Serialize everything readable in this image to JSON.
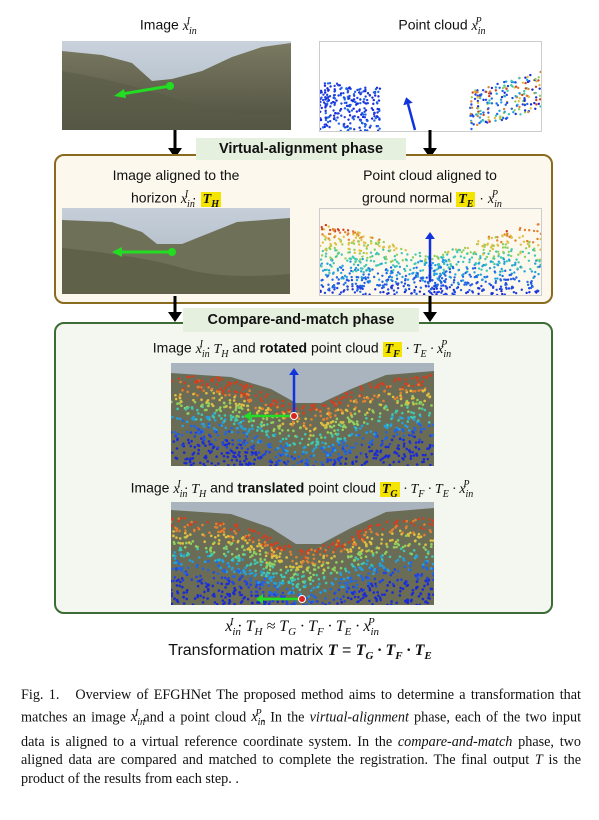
{
  "top": {
    "image_label": "Image ",
    "pc_label": "Point cloud "
  },
  "virtual_phase": {
    "title": "Virtual-alignment phase",
    "left_label_1": "Image aligned to the",
    "left_label_2": "horizon ",
    "right_label_1": "Point cloud aligned to",
    "right_label_2": "ground normal "
  },
  "compare_phase": {
    "title": "Compare-and-match phase",
    "rot_pre": "Image ",
    "rot_mid": " and ",
    "rot_bold": "rotated",
    "rot_post": " point cloud ",
    "trans_pre": "Image ",
    "trans_mid": " and ",
    "trans_bold": "translated",
    "trans_post": " point cloud "
  },
  "equations": {
    "line2_pre": "Transformation matrix "
  },
  "caption": {
    "fig": "Fig. 1.",
    "text1": "Overview of EFGHNet The proposed method aims to determine a transformation that matches an image ",
    "text2": " and a point cloud ",
    "text3": ". In the ",
    "virtual": "virtual-alignment",
    "text4": " phase, each of the two input data is aligned to a virtual reference coordinate system. In the ",
    "compare": "compare-and-match",
    "text5": " phase, two aligned data are compared and matched to complete the registration. The final output ",
    "text6": " is the product of the results from each step. ."
  },
  "colors": {
    "virtual_border": "#8a6a1e",
    "virtual_bg": "#fdf8ee",
    "compare_border": "#3c6b35",
    "compare_bg": "#f3f7ef",
    "title_bg": "#e6f0df",
    "highlight": "#f5e400",
    "arrow_green": "#22dd22",
    "arrow_blue": "#1133dd"
  }
}
